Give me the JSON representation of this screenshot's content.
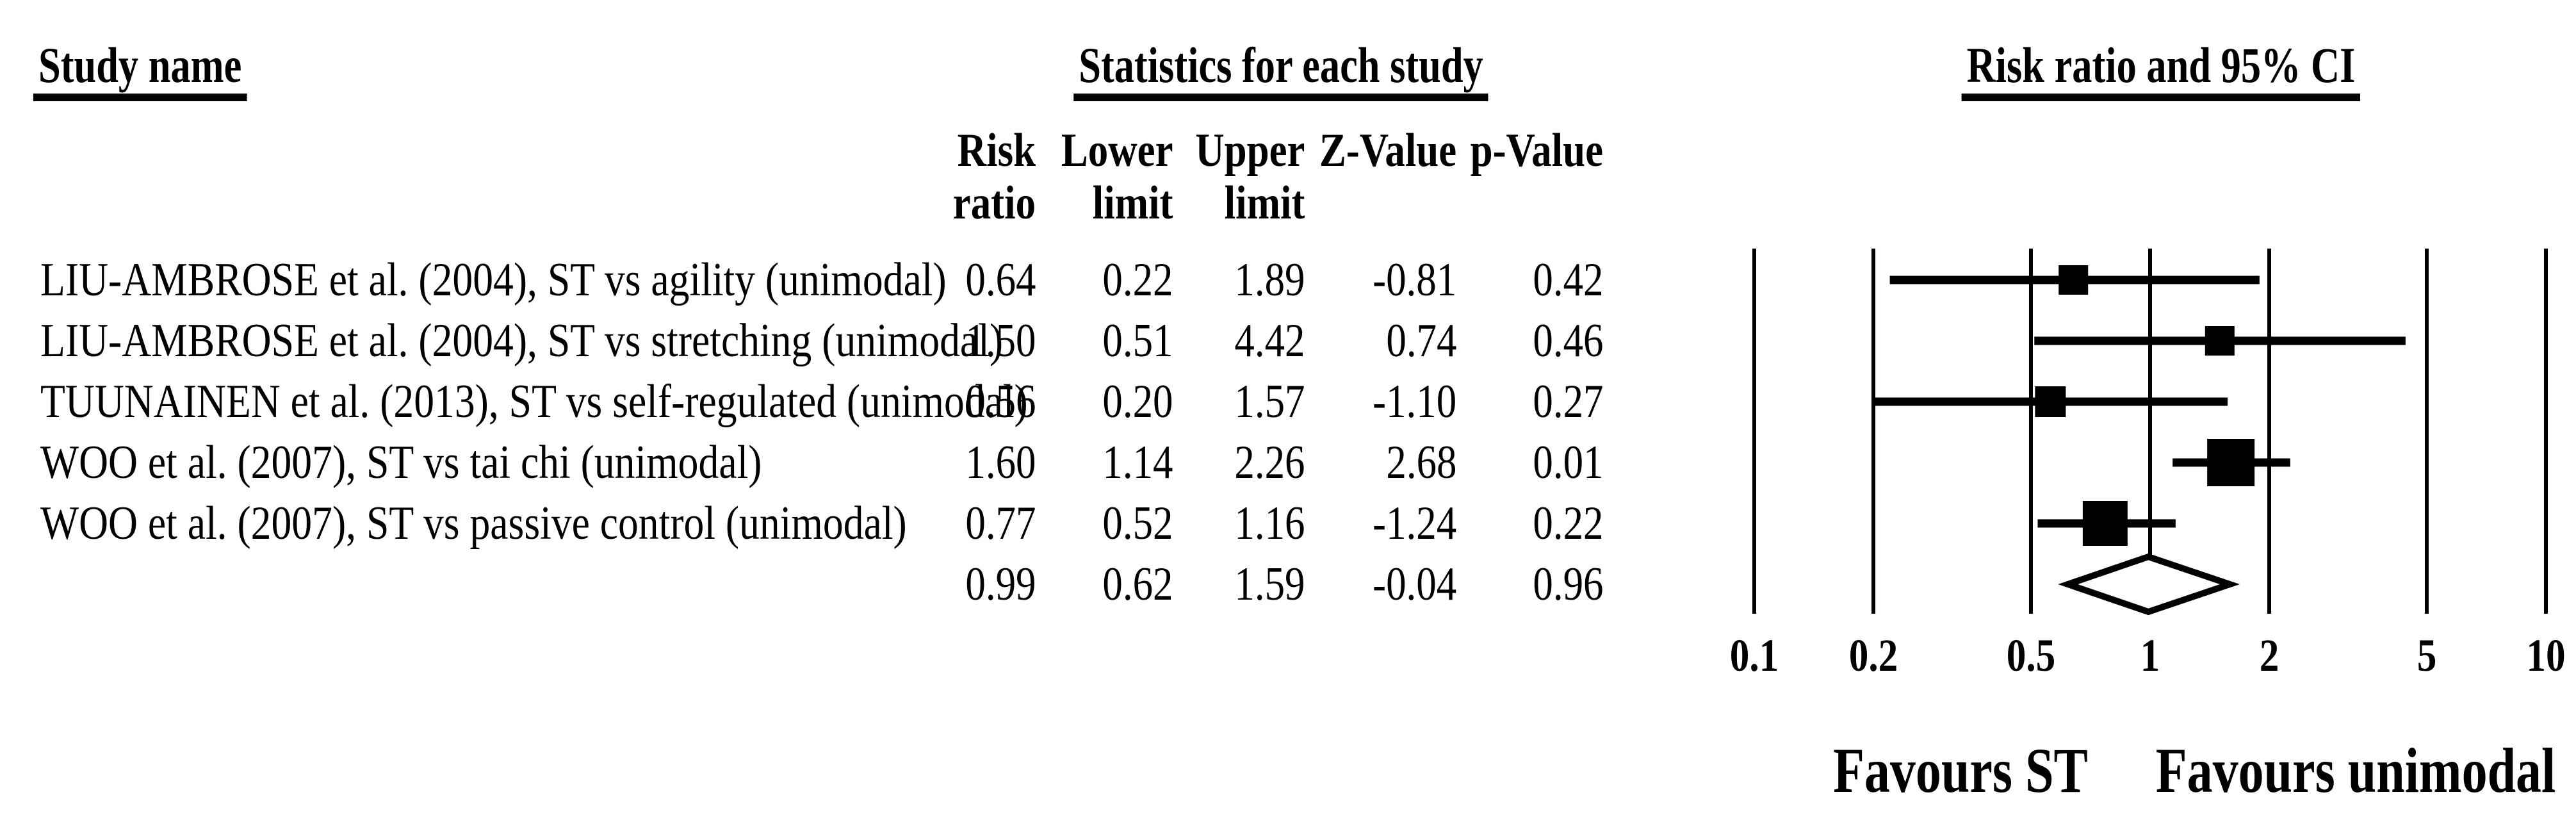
{
  "page": {
    "background": "#ffffff",
    "text_color": "#000000"
  },
  "headers": {
    "study_name": "Study name",
    "statistics": "Statistics for each study",
    "risk_ratio_ci": "Risk ratio and 95% CI"
  },
  "columns": [
    {
      "line1": "Risk",
      "line2": "ratio"
    },
    {
      "line1": "Lower",
      "line2": "limit"
    },
    {
      "line1": "Upper",
      "line2": "limit"
    },
    {
      "line1": "",
      "line2": "Z-Value"
    },
    {
      "line1": "",
      "line2": "p-Value"
    }
  ],
  "chart_data": {
    "type": "forest",
    "title": "Risk ratio and 95% CI",
    "x_axis": {
      "scale": "log10",
      "range": [
        0.1,
        10
      ],
      "ticks": [
        "0.1",
        "0.2",
        "0.5",
        "1",
        "2",
        "5",
        "10"
      ]
    },
    "studies": [
      {
        "name": "LIU-AMBROSE et al. (2004), ST vs agility (unimodal)",
        "risk_ratio": "0.64",
        "lower_limit": "0.22",
        "upper_limit": "1.89",
        "z_value": "-0.81",
        "p_value": "0.42",
        "marker_size": 46
      },
      {
        "name": "LIU-AMBROSE et al. (2004), ST vs stretching (unimodal)",
        "risk_ratio": "1.50",
        "lower_limit": "0.51",
        "upper_limit": "4.42",
        "z_value": "0.74",
        "p_value": "0.46",
        "marker_size": 46
      },
      {
        "name": "TUUNAINEN et al. (2013), ST vs self-regulated (unimodal)",
        "risk_ratio": "0.56",
        "lower_limit": "0.20",
        "upper_limit": "1.57",
        "z_value": "-1.10",
        "p_value": "0.27",
        "marker_size": 48
      },
      {
        "name": "WOO et al. (2007), ST vs tai chi (unimodal)",
        "risk_ratio": "1.60",
        "lower_limit": "1.14",
        "upper_limit": "2.26",
        "z_value": "2.68",
        "p_value": "0.01",
        "marker_size": 74
      },
      {
        "name": "WOO et al. (2007), ST vs passive control (unimodal)",
        "risk_ratio": "0.77",
        "lower_limit": "0.52",
        "upper_limit": "1.16",
        "z_value": "-1.24",
        "p_value": "0.22",
        "marker_size": 70
      }
    ],
    "summary": {
      "risk_ratio": "0.99",
      "lower_limit": "0.62",
      "upper_limit": "1.59",
      "z_value": "-0.04",
      "p_value": "0.96"
    },
    "footer_labels": {
      "left": "Favours ST",
      "right": "Favours unimodal"
    }
  }
}
